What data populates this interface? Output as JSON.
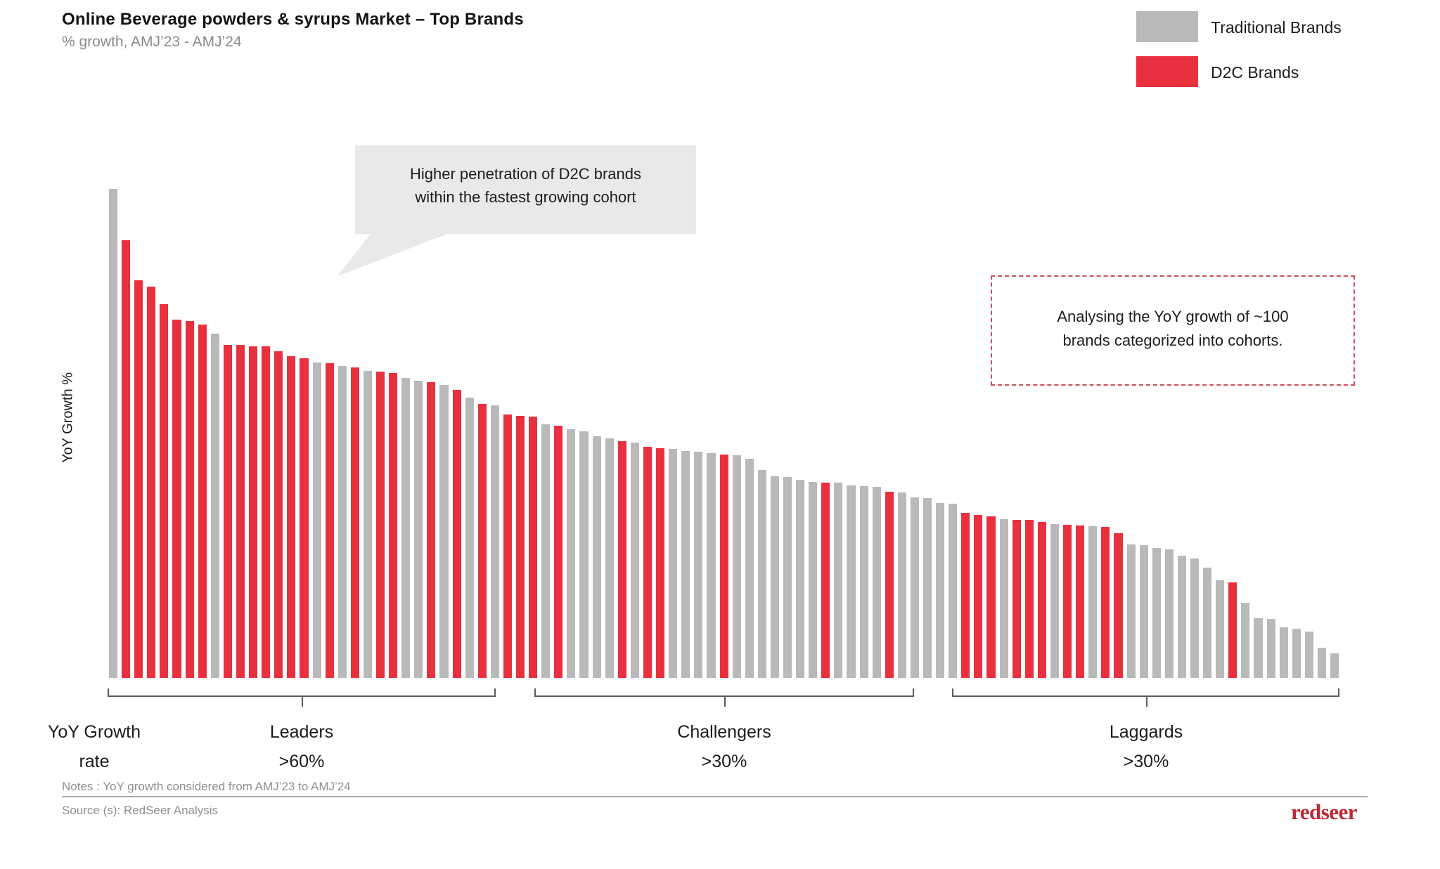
{
  "header": {
    "title": "Online Beverage powders & syrups Market – Top Brands",
    "subtitle": "% growth, AMJ’23 - AMJ’24"
  },
  "legend": [
    {
      "label": "Traditional Brands",
      "color": "#B9B9B9"
    },
    {
      "label": "D2C Brands",
      "color": "#E9303E"
    }
  ],
  "annotations": {
    "callout": {
      "line1": "Higher penetration of D2C brands",
      "line2": "within the fastest growing cohort"
    },
    "analysis_box": {
      "line1": "Analysing the YoY growth of ~100",
      "line2": "brands categorized into cohorts."
    }
  },
  "y_axis_label": "YoY Growth %",
  "cohort_axis": {
    "row_label_line1": "YoY Growth",
    "row_label_line2": "rate"
  },
  "footer": {
    "notes": "Notes : YoY growth considered from AMJ’23 to AMJ’24",
    "source": "Source (s): RedSeer Analysis",
    "logo": "redseer"
  },
  "chart_data": {
    "type": "bar",
    "title": "Online Beverage powders & syrups Market – Top Brands",
    "subtitle": "% growth, AMJ’23 - AMJ’24",
    "ylabel": "YoY Growth %",
    "unit": "percent YoY growth",
    "ylim": [
      0,
      110
    ],
    "grid": false,
    "legend_position": "top-right",
    "n_bars": 97,
    "series_legend": {
      "T": "Traditional Brands",
      "D": "D2C Brands"
    },
    "brand_types": "TDDDDDDDTDDDDDDDTDTDTDDTTDTDTDTDDDTDTTTTDTDDTTTTDTTTTTTTDTTTTDTTTTTDDDTDDDTDDTDDTTTTTTTTDTTTTTTTT",
    "values": [
      108.5,
      97.1,
      88.2,
      86.8,
      82.9,
      79.5,
      79.1,
      78.4,
      76.3,
      73.9,
      73.9,
      73.5,
      73.5,
      72.4,
      71.4,
      70.9,
      70.0,
      69.8,
      69.2,
      68.9,
      68.1,
      67.9,
      67.6,
      66.5,
      65.9,
      65.6,
      65.0,
      63.9,
      62.2,
      60.8,
      60.4,
      58.4,
      58.1,
      58.0,
      56.2,
      55.9,
      55.2,
      54.7,
      53.6,
      53.1,
      52.5,
      52.2,
      51.3,
      50.9,
      50.8,
      50.3,
      50.2,
      49.9,
      49.5,
      49.4,
      48.6,
      46.1,
      44.7,
      44.6,
      43.9,
      43.5,
      43.4,
      43.3,
      42.7,
      42.5,
      42.4,
      41.3,
      41.1,
      40.0,
      39.9,
      38.8,
      38.6,
      36.6,
      36.1,
      35.8,
      35.2,
      35.1,
      35.0,
      34.6,
      34.1,
      34.0,
      33.9,
      33.6,
      33.5,
      32.1,
      29.6,
      29.4,
      28.8,
      28.5,
      27.1,
      26.5,
      24.5,
      21.7,
      21.2,
      16.7,
      13.2,
      13.1,
      11.2,
      10.9,
      10.3,
      6.7,
      5.5
    ],
    "cohorts": [
      {
        "name": "Leaders",
        "threshold": ">60%"
      },
      {
        "name": "Challengers",
        "threshold": ">30%"
      },
      {
        "name": "Laggards",
        "threshold": ">30%"
      }
    ]
  }
}
